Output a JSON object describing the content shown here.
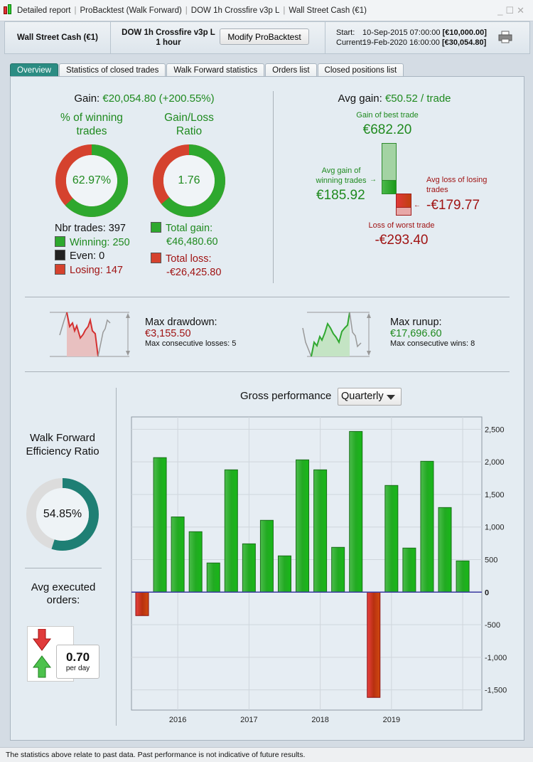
{
  "window": {
    "breadcrumb": [
      "Detailed report",
      "ProBacktest (Walk Forward)",
      "DOW 1h Crossfire v3p L",
      "Wall Street Cash (€1)"
    ],
    "controls": {
      "minimize": "_",
      "maximize": "☐",
      "close": "✕"
    }
  },
  "header": {
    "instrument": "Wall Street Cash (€1)",
    "strategy": "DOW 1h Crossfire v3p L",
    "timeframe": "1 hour",
    "modify_button": "Modify ProBacktest",
    "start_label": "Start:",
    "start_date": "10-Sep-2015 07:00:00",
    "start_capital": "[€10,000.00]",
    "current_label": "Current:",
    "current_date": "19-Feb-2020 16:00:00",
    "current_capital": "[€30,054.80]"
  },
  "tabs": [
    {
      "label": "Overview",
      "active": true
    },
    {
      "label": "Statistics of closed trades"
    },
    {
      "label": "Walk Forward statistics"
    },
    {
      "label": "Orders list"
    },
    {
      "label": "Closed positions list"
    }
  ],
  "overview": {
    "gain_label": "Gain:",
    "gain_value": "€20,054.80 (+200.55%)",
    "winning_title": "% of winning trades",
    "winning_pct_text": "62.97%",
    "winning_pct": 62.97,
    "ratio_title": "Gain/Loss Ratio",
    "ratio_text": "1.76",
    "nbr_trades": "Nbr trades: 397",
    "winning": "Winning: 250",
    "even": "Even: 0",
    "losing": "Losing: 147",
    "total_gain_label": "Total gain:",
    "total_gain": "€46,480.60",
    "total_loss_label": "Total loss:",
    "total_loss": "-€26,425.80",
    "avg_gain_label": "Avg gain:",
    "avg_gain_value": "€50.52 / trade",
    "best_trade_label": "Gain of best trade",
    "best_trade": "€682.20",
    "avg_win_label": "Avg gain of winning trades",
    "avg_win": "€185.92",
    "avg_loss_label": "Avg loss of losing trades",
    "avg_loss": "-€179.77",
    "worst_trade_label": "Loss of worst trade",
    "worst_trade": "-€293.40",
    "drawdown_label": "Max drawdown:",
    "drawdown": "€3,155.50",
    "consec_losses": "Max consecutive losses: 5",
    "runup_label": "Max runup:",
    "runup": "€17,696.60",
    "consec_wins": "Max consecutive wins: 8",
    "wfe_title": "Walk Forward Efficiency Ratio",
    "wfe_text": "54.85%",
    "wfe_pct": 54.85,
    "avg_orders_title": "Avg executed orders:",
    "avg_orders_value": "0.70",
    "avg_orders_unit": "per day",
    "chart_title": "Gross performance",
    "period_select": "Quarterly"
  },
  "colors": {
    "win": "#2aa82a",
    "loss": "#d23a2a",
    "teal": "#1e7f74",
    "active_tab": "#2b8c83"
  },
  "chart_data": {
    "type": "bar",
    "title": "Gross performance",
    "x": [
      "2015-Q3",
      "2015-Q4",
      "2016-Q1",
      "2016-Q2",
      "2016-Q3",
      "2016-Q4",
      "2017-Q1",
      "2017-Q2",
      "2017-Q3",
      "2017-Q4",
      "2018-Q1",
      "2018-Q2",
      "2018-Q3",
      "2018-Q4",
      "2019-Q1",
      "2019-Q2",
      "2019-Q3",
      "2019-Q4",
      "2020-Q1"
    ],
    "values": [
      -360,
      2065,
      1155,
      928,
      448,
      1878,
      742,
      1103,
      557,
      2031,
      1878,
      688,
      2467,
      -1616,
      1638,
      677,
      2009,
      1299,
      480
    ],
    "xticks": [
      {
        "label": "2016",
        "index": 2
      },
      {
        "label": "2017",
        "index": 6
      },
      {
        "label": "2018",
        "index": 10
      },
      {
        "label": "2019",
        "index": 14
      }
    ],
    "yticks": [
      2500,
      2000,
      1500,
      1000,
      500,
      0,
      -500,
      -1000,
      -1500
    ],
    "ytick_labels": [
      "2,500",
      "2,000",
      "1,500",
      "1,000",
      "500",
      "0",
      "-500",
      "-1,000",
      "-1,500"
    ],
    "ylim": [
      -1810,
      2690
    ],
    "grid": true
  },
  "footer": {
    "disclaimer": "The statistics above relate to past data. Past performance is not indicative of future results."
  }
}
